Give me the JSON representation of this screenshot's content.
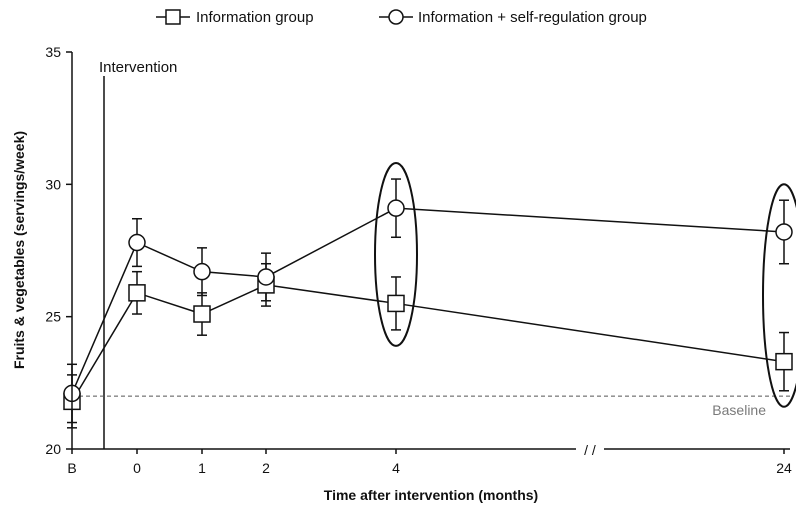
{
  "chart_data": {
    "type": "line",
    "xlabel": "Time after intervention (months)",
    "ylabel": "Fruits & vegetables (servings/week)",
    "ylim": [
      20,
      35
    ],
    "yticks": [
      "20",
      "25",
      "30",
      "35"
    ],
    "categories": [
      "B",
      "0",
      "1",
      "2",
      "4",
      "24"
    ],
    "axis_break_label": "/ /",
    "grid": false,
    "legend_position": "top",
    "series": [
      {
        "name": "Information group",
        "marker": "square",
        "values": [
          21.8,
          25.9,
          25.1,
          26.2,
          25.5,
          23.3
        ],
        "error": [
          1.0,
          0.8,
          0.8,
          0.8,
          1.0,
          1.1
        ]
      },
      {
        "name": "Information + self-regulation group",
        "marker": "circle",
        "values": [
          22.1,
          27.8,
          26.7,
          26.5,
          29.1,
          28.2
        ],
        "error": [
          1.1,
          0.9,
          0.9,
          0.9,
          1.1,
          1.2
        ]
      }
    ],
    "annotations": {
      "intervention_label": "Intervention",
      "baseline_label": "Baseline",
      "baseline_value": 22.0,
      "highlighted_categories": [
        "4",
        "24"
      ]
    }
  }
}
